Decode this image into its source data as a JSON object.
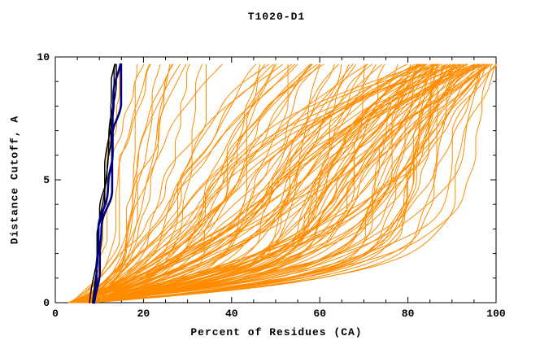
{
  "chart_data": {
    "type": "line",
    "title": "T1020-D1",
    "xlabel": "Percent of Residues (CA)",
    "ylabel": "Distance Cutoff, A",
    "xlim": [
      0,
      100
    ],
    "ylim": [
      0,
      10
    ],
    "x_major_ticks": [
      0,
      20,
      40,
      60,
      80,
      100
    ],
    "y_major_ticks": [
      0,
      5,
      10
    ],
    "x_minor_step": 5,
    "y_minor_step": 1,
    "x_tick_labels": [
      "0",
      "20",
      "40",
      "60",
      "80",
      "100"
    ],
    "y_tick_labels": [
      "0",
      "5",
      "10"
    ],
    "grid": false,
    "legend": "none",
    "frame": "full-box-with-inward-ticks",
    "description": "Spaghetti plot: cumulative percent of CA residues within each distance cutoff for ~135 overlaid model curves. Orange bundle = model population (ends spread mostly 80-100% at cutoff ~9.7 A, a few poor models staying below 45%); thin black and thick navy near-vertical curves hug x = 8-16% across all cutoffs.",
    "colors": {
      "orange": "#ff8c00",
      "black": "#000000",
      "navy": "#000080",
      "frame": "#000000",
      "background": "#ffffff"
    },
    "curve_spec": {
      "seed": 1020,
      "y_top": 9.7,
      "x_samples": 120,
      "groups": [
        {
          "name": "orange",
          "color": "#ff8c00",
          "stroke_width": 1,
          "count": 130,
          "x_start": [
            3,
            8
          ],
          "end_mix": [
            {
              "w": 0.6,
              "x1": [
                82,
                100
              ]
            },
            {
              "w": 0.27,
              "x1": [
                45,
                82
              ]
            },
            {
              "w": 0.13,
              "x1": [
                13,
                45
              ]
            }
          ],
          "fast_q": [
            2.5,
            12
          ],
          "slow_p": [
            1.2,
            3.5
          ],
          "fast_share": [
            0.3,
            0.95
          ],
          "noise": 1.3
        },
        {
          "name": "black",
          "color": "#000000",
          "stroke_width": 1.5,
          "count": 3,
          "x_start": [
            7.5,
            9
          ],
          "end_mix": [
            {
              "w": 1,
              "x1": [
                13.5,
                16
              ]
            }
          ],
          "fast_q": [
            1,
            1.6
          ],
          "slow_p": [
            0.9,
            1.3
          ],
          "fast_share": [
            0.3,
            0.7
          ],
          "noise": 0.9
        },
        {
          "name": "navy",
          "color": "#000080",
          "stroke_width": 2.6,
          "count": 2,
          "x_start": [
            8,
            9
          ],
          "end_mix": [
            {
              "w": 1,
              "x1": [
                14,
                15.5
              ]
            }
          ],
          "fast_q": [
            1,
            1.5
          ],
          "slow_p": [
            0.9,
            1.2
          ],
          "fast_share": [
            0.3,
            0.7
          ],
          "noise": 0.8
        }
      ]
    }
  }
}
